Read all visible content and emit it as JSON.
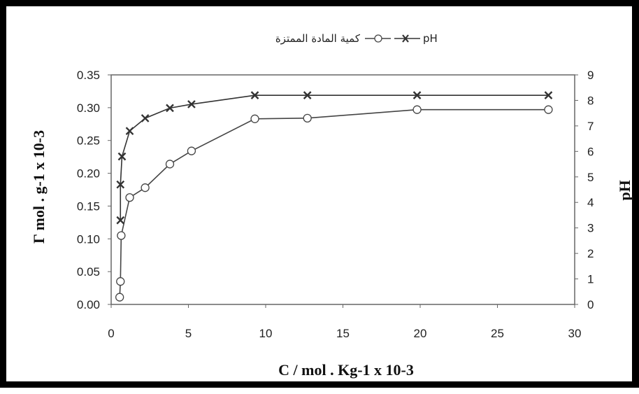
{
  "chart_data": {
    "type": "line",
    "x": [],
    "xlabel": "C / mol . Kg-1 x 10-3",
    "ylabel_left": "Γ mol . g-1 x 10-3",
    "ylabel_right": "pH",
    "xlim": [
      0,
      30
    ],
    "ylim_left": [
      0,
      0.35
    ],
    "ylim_right": [
      0,
      9
    ],
    "xticks": [
      "0",
      "5",
      "10",
      "15",
      "20",
      "25",
      "30"
    ],
    "yticks_left": [
      "0.00",
      "0.05",
      "0.10",
      "0.15",
      "0.20",
      "0.25",
      "0.30",
      "0.35"
    ],
    "yticks_right": [
      "0",
      "1",
      "2",
      "3",
      "4",
      "5",
      "6",
      "7",
      "8",
      "9"
    ],
    "grid": false,
    "legend_position": "top-center",
    "series": [
      {
        "name": "كمية المادة الممتزة",
        "axis": "left",
        "marker": "circle",
        "color": "#444444",
        "points": [
          [
            0.55,
            0.011
          ],
          [
            0.6,
            0.035
          ],
          [
            0.65,
            0.105
          ],
          [
            1.2,
            0.163
          ],
          [
            2.2,
            0.178
          ],
          [
            3.8,
            0.214
          ],
          [
            5.2,
            0.234
          ],
          [
            9.3,
            0.283
          ],
          [
            12.7,
            0.284
          ],
          [
            19.8,
            0.297
          ],
          [
            28.3,
            0.297
          ]
        ]
      },
      {
        "name": "pH",
        "axis": "right",
        "marker": "x",
        "color": "#333333",
        "points": [
          [
            0.6,
            3.3
          ],
          [
            0.6,
            4.7
          ],
          [
            0.7,
            5.8
          ],
          [
            1.2,
            6.8
          ],
          [
            2.2,
            7.3
          ],
          [
            3.8,
            7.7
          ],
          [
            5.2,
            7.85
          ],
          [
            9.3,
            8.2
          ],
          [
            12.7,
            8.2
          ],
          [
            19.8,
            8.2
          ],
          [
            28.3,
            8.2
          ]
        ]
      }
    ]
  }
}
